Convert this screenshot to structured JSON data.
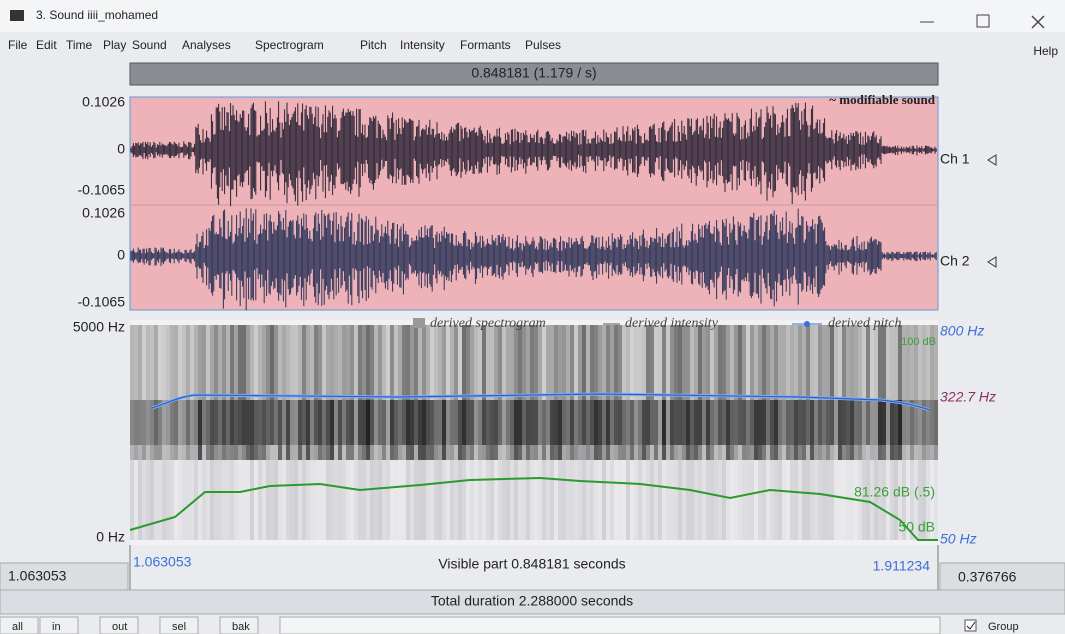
{
  "window": {
    "title": "3. Sound iiii_mohamed"
  },
  "menu": {
    "items": [
      "File",
      "Edit",
      "Time",
      "Play",
      "Sound",
      "Analyses",
      "Spectrogram",
      "Pitch",
      "Intensity",
      "Formants",
      "Pulses"
    ],
    "help": "Help"
  },
  "time_bar": "0.848181 (1.179 / s)",
  "sound": {
    "label": "~ modifiable sound",
    "channels": [
      {
        "name": "Ch 1",
        "max": "0.1026",
        "zero": "0",
        "min": "-0.1065"
      },
      {
        "name": "Ch 2",
        "max": "0.1026",
        "zero": "0",
        "min": "-0.1065"
      }
    ]
  },
  "spectrogram": {
    "top": "5000 Hz",
    "bottom": "0 Hz",
    "legend": [
      "derived spectrogram",
      "derived intensity",
      "derived pitch"
    ],
    "pitch_top": "800 Hz",
    "pitch_value": "322.7 Hz",
    "pitch_bottom": "50 Hz",
    "intensity_top": "100 dB",
    "intensity_value": "81.26 dB (.5)",
    "intensity_bottom": "50 dB"
  },
  "time": {
    "start": "1.063053",
    "visible": "Visible part 0.848181 seconds",
    "end": "1.911234",
    "left": "1.063053",
    "right": "0.376766",
    "total": "Total duration 2.288000 seconds"
  },
  "buttons": [
    "all",
    "in",
    "out",
    "sel",
    "bak"
  ],
  "group": "Group"
}
